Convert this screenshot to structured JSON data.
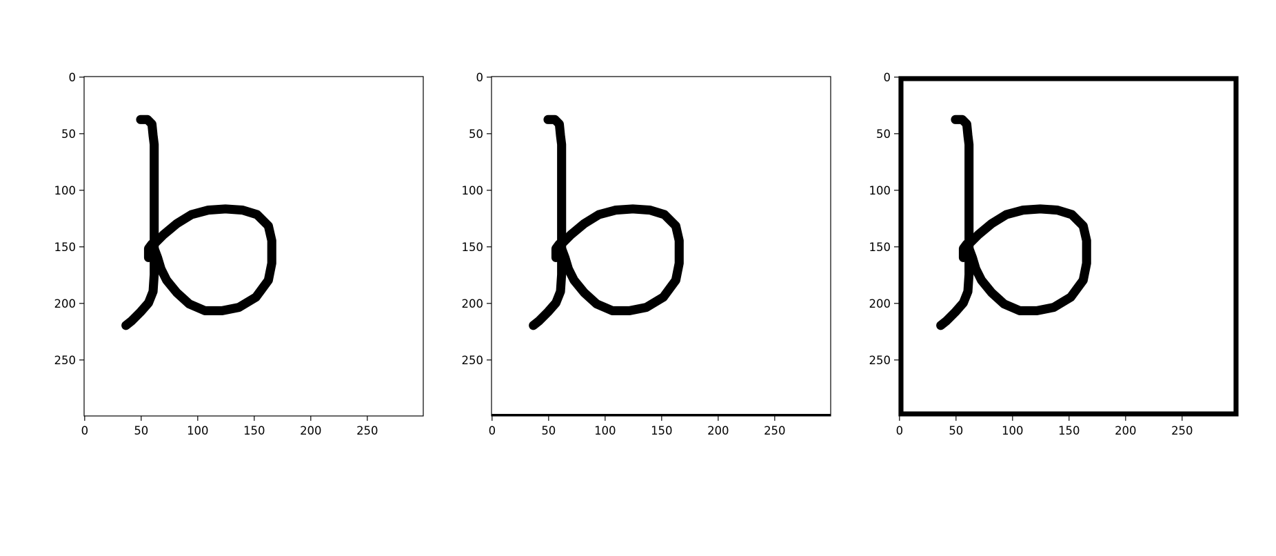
{
  "figure": {
    "background": "#ffffff",
    "ink_color": "#000000"
  },
  "chart_data": [
    {
      "type": "image",
      "title": "",
      "xlabel": "",
      "ylabel": "",
      "xlim": [
        0,
        299
      ],
      "ylim": [
        299,
        0
      ],
      "xticks": [
        0,
        50,
        100,
        150,
        200,
        250
      ],
      "yticks": [
        0,
        50,
        100,
        150,
        200,
        250
      ],
      "grid": false,
      "content": "handwritten letter b, binary image",
      "border_frame_px": 0
    },
    {
      "type": "image",
      "title": "",
      "xlabel": "",
      "ylabel": "",
      "xlim": [
        0,
        299
      ],
      "ylim": [
        299,
        0
      ],
      "xticks": [
        0,
        50,
        100,
        150,
        200,
        250
      ],
      "yticks": [
        0,
        50,
        100,
        150,
        200,
        250
      ],
      "grid": false,
      "content": "handwritten letter b with thin bottom edge line",
      "border_frame_px": 1
    },
    {
      "type": "image",
      "title": "",
      "xlabel": "",
      "ylabel": "",
      "xlim": [
        0,
        299
      ],
      "ylim": [
        299,
        0
      ],
      "xticks": [
        0,
        50,
        100,
        150,
        200,
        250
      ],
      "yticks": [
        0,
        50,
        100,
        150,
        200,
        250
      ],
      "grid": false,
      "content": "handwritten letter b with thick black border frame",
      "border_frame_px": 4
    }
  ]
}
